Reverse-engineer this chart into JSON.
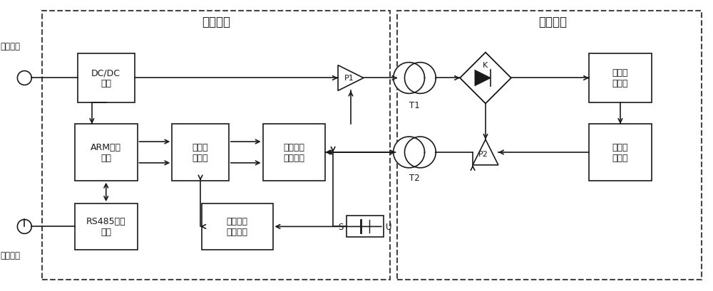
{
  "fig_width": 10.0,
  "fig_height": 4.1,
  "bg_color": "#ffffff",
  "line_color": "#1a1a1a",
  "stator_label": "定子系统",
  "rotor_label": "转子系统",
  "power_input": "电源输入",
  "signal_output": "信号输出",
  "dcdc_text": "DC/DC\n单元",
  "arm_text": "ARM微控\n制器",
  "rs485_text": "RS485通信\n接口",
  "sigconv_text": "信号转\n换电路",
  "freqdist_text": "频率失真\n校正电路",
  "speedsig_text": "转速信号\n调理单元",
  "strain_text": "应变电\n阵电桥",
  "sigconvu_text": "信号变\n换单元"
}
